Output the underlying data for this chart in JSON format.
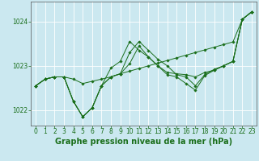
{
  "background_color": "#cbe8f0",
  "grid_color": "#ffffff",
  "line_color": "#1a6e1a",
  "xlabel": "Graphe pression niveau de la mer (hPa)",
  "xlabel_fontsize": 7,
  "tick_fontsize": 5.5,
  "xlim": [
    -0.5,
    23.5
  ],
  "ylim": [
    1021.65,
    1024.45
  ],
  "yticks": [
    1022,
    1023,
    1024
  ],
  "xticks": [
    0,
    1,
    2,
    3,
    4,
    5,
    6,
    7,
    8,
    9,
    10,
    11,
    12,
    13,
    14,
    15,
    16,
    17,
    18,
    19,
    20,
    21,
    22,
    23
  ],
  "series": [
    [
      1022.55,
      1022.7,
      1022.75,
      1022.75,
      1022.7,
      1022.6,
      1022.65,
      1022.7,
      1022.75,
      1022.82,
      1022.88,
      1022.94,
      1023.0,
      1023.06,
      1023.12,
      1023.18,
      1023.24,
      1023.3,
      1023.36,
      1023.42,
      1023.48,
      1023.54,
      1024.05,
      1024.22
    ],
    [
      1022.55,
      1022.7,
      1022.75,
      1022.75,
      1022.2,
      1021.85,
      1022.05,
      1022.55,
      1022.95,
      1023.1,
      1023.55,
      1023.35,
      1023.2,
      1023.0,
      1022.85,
      1022.82,
      1022.8,
      1022.75,
      1022.85,
      1022.9,
      1023.0,
      1023.1,
      1024.05,
      1024.22
    ],
    [
      1022.55,
      1022.7,
      1022.75,
      1022.75,
      1022.2,
      1021.85,
      1022.05,
      1022.55,
      1022.75,
      1022.82,
      1023.3,
      1023.55,
      1023.35,
      1023.15,
      1023.0,
      1022.8,
      1022.75,
      1022.55,
      1022.8,
      1022.92,
      1023.0,
      1023.1,
      1024.05,
      1024.22
    ],
    [
      1022.55,
      1022.7,
      1022.75,
      1022.75,
      1022.2,
      1021.85,
      1022.05,
      1022.55,
      1022.75,
      1022.82,
      1023.05,
      1023.45,
      1023.2,
      1023.0,
      1022.8,
      1022.75,
      1022.6,
      1022.45,
      1022.78,
      1022.9,
      1023.0,
      1023.1,
      1024.05,
      1024.22
    ]
  ]
}
